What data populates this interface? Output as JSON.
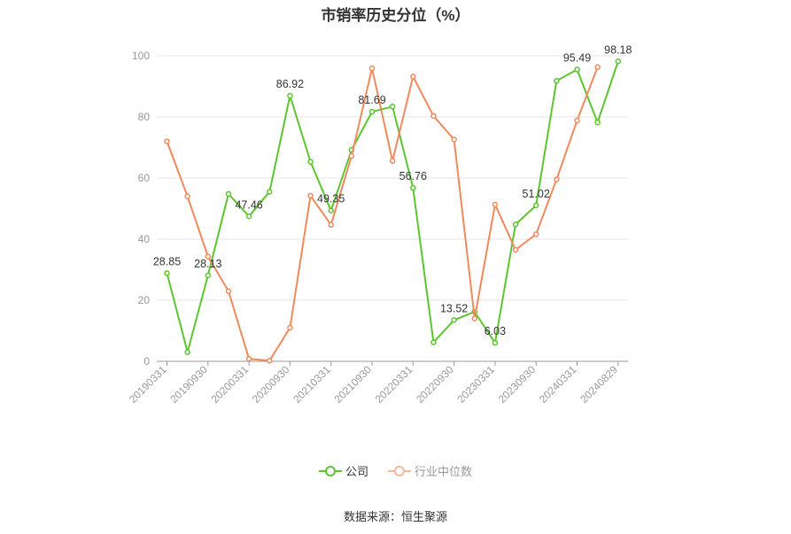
{
  "chart_data": {
    "type": "line",
    "title": "市销率历史分位（%）",
    "xlabel": "",
    "ylabel": "",
    "ylim": [
      0,
      100
    ],
    "y_ticks": [
      0,
      20,
      40,
      60,
      80,
      100
    ],
    "x_tick_labels": [
      "20190331",
      "20190930",
      "20200331",
      "20200930",
      "20210331",
      "20210930",
      "20220331",
      "20220930",
      "20230331",
      "20230930",
      "20240331",
      "20240829"
    ],
    "grid": true,
    "legend_position": "bottom",
    "series": [
      {
        "name": "公司",
        "color": "#5cc530",
        "values": [
          28.85,
          3.0,
          28.13,
          54.8,
          47.46,
          55.5,
          86.92,
          65.3,
          49.35,
          69.2,
          81.69,
          83.4,
          56.76,
          6.2,
          13.52,
          16.2,
          6.03,
          44.8,
          51.02,
          91.8,
          95.49,
          78.2,
          98.18
        ],
        "point_labels": {
          "0": "28.85",
          "2": "28.13",
          "4": "47.46",
          "6": "86.92",
          "8": "49.35",
          "10": "81.69",
          "12": "56.76",
          "14": "13.52",
          "16": "6.03",
          "18": "51.02",
          "20": "95.49",
          "22": "98.18"
        }
      },
      {
        "name": "行业中位数",
        "color": "#f08a5d",
        "values": [
          72.0,
          54.0,
          34.3,
          23.0,
          0.8,
          0.2,
          11.0,
          54.2,
          44.7,
          67.2,
          95.9,
          65.6,
          93.2,
          80.3,
          72.6,
          14.0,
          51.3,
          36.5,
          41.6,
          59.5,
          78.8,
          96.3,
          null
        ]
      }
    ]
  },
  "source_text": "数据来源：恒生聚源"
}
